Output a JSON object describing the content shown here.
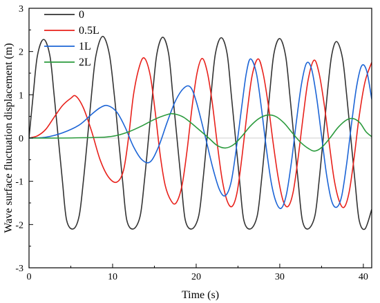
{
  "chart_data": {
    "type": "line",
    "title": "",
    "xlabel": "Time (s)",
    "ylabel": "Wave surface fluctuation displacement (m)",
    "xlim": [
      0,
      41
    ],
    "ylim": [
      -3,
      3
    ],
    "x_ticks": [
      0,
      10,
      20,
      30,
      40
    ],
    "y_ticks": [
      -3,
      -2,
      -1,
      0,
      1,
      2,
      3
    ],
    "grid": false,
    "legend": {
      "position": "top-left"
    },
    "series": [
      {
        "name": "0",
        "color": "#333333",
        "points": [
          [
            0,
            0
          ],
          [
            0.5,
            1.0
          ],
          [
            1.0,
            1.9
          ],
          [
            1.75,
            2.28
          ],
          [
            2.5,
            1.9
          ],
          [
            3.0,
            1.0
          ],
          [
            3.5,
            0.0
          ],
          [
            4.0,
            -1.0
          ],
          [
            4.5,
            -1.9
          ],
          [
            5.3,
            -2.1
          ],
          [
            6.0,
            -1.8
          ],
          [
            6.5,
            -1.0
          ],
          [
            7.0,
            0.0
          ],
          [
            7.5,
            1.05
          ],
          [
            8.0,
            1.9
          ],
          [
            8.8,
            2.35
          ],
          [
            9.6,
            1.95
          ],
          [
            10.2,
            1.0
          ],
          [
            10.7,
            0.0
          ],
          [
            11.2,
            -1.0
          ],
          [
            11.7,
            -1.9
          ],
          [
            12.5,
            -2.1
          ],
          [
            13.3,
            -1.8
          ],
          [
            13.8,
            -1.0
          ],
          [
            14.3,
            0.0
          ],
          [
            14.8,
            1.05
          ],
          [
            15.3,
            1.95
          ],
          [
            16.0,
            2.33
          ],
          [
            16.7,
            1.95
          ],
          [
            17.2,
            1.0
          ],
          [
            17.7,
            0.0
          ],
          [
            18.2,
            -1.0
          ],
          [
            18.7,
            -1.9
          ],
          [
            19.5,
            -2.1
          ],
          [
            20.3,
            -1.8
          ],
          [
            20.8,
            -1.0
          ],
          [
            21.3,
            0.0
          ],
          [
            21.8,
            1.05
          ],
          [
            22.3,
            1.95
          ],
          [
            23.0,
            2.32
          ],
          [
            23.7,
            1.95
          ],
          [
            24.2,
            1.0
          ],
          [
            24.7,
            0.0
          ],
          [
            25.2,
            -1.0
          ],
          [
            25.7,
            -1.9
          ],
          [
            26.5,
            -2.1
          ],
          [
            27.3,
            -1.8
          ],
          [
            27.8,
            -1.0
          ],
          [
            28.3,
            0.0
          ],
          [
            28.8,
            1.05
          ],
          [
            29.3,
            1.95
          ],
          [
            30.0,
            2.3
          ],
          [
            30.7,
            1.9
          ],
          [
            31.2,
            1.0
          ],
          [
            31.7,
            0.0
          ],
          [
            32.2,
            -1.0
          ],
          [
            32.7,
            -1.9
          ],
          [
            33.4,
            -2.1
          ],
          [
            34.2,
            -1.8
          ],
          [
            34.7,
            -1.0
          ],
          [
            35.2,
            0.0
          ],
          [
            35.7,
            1.05
          ],
          [
            36.2,
            1.9
          ],
          [
            36.8,
            2.23
          ],
          [
            37.5,
            1.85
          ],
          [
            38.0,
            1.0
          ],
          [
            38.5,
            0.0
          ],
          [
            39.0,
            -1.0
          ],
          [
            39.5,
            -1.9
          ],
          [
            40.2,
            -2.1
          ],
          [
            41.0,
            -1.65
          ]
        ]
      },
      {
        "name": "0.5L",
        "color": "#e8201a",
        "points": [
          [
            0,
            0
          ],
          [
            1.0,
            0.05
          ],
          [
            2.0,
            0.2
          ],
          [
            3.0,
            0.48
          ],
          [
            4.0,
            0.75
          ],
          [
            5.0,
            0.92
          ],
          [
            5.6,
            0.97
          ],
          [
            6.5,
            0.7
          ],
          [
            7.5,
            0.15
          ],
          [
            8.5,
            -0.5
          ],
          [
            9.5,
            -0.9
          ],
          [
            10.5,
            -1.02
          ],
          [
            11.3,
            -0.75
          ],
          [
            11.9,
            0.0
          ],
          [
            12.5,
            1.0
          ],
          [
            13.2,
            1.65
          ],
          [
            13.8,
            1.85
          ],
          [
            14.5,
            1.45
          ],
          [
            15.1,
            0.6
          ],
          [
            15.7,
            -0.4
          ],
          [
            16.3,
            -1.1
          ],
          [
            17.0,
            -1.45
          ],
          [
            17.6,
            -1.5
          ],
          [
            18.3,
            -1.1
          ],
          [
            18.9,
            -0.3
          ],
          [
            19.5,
            0.7
          ],
          [
            20.1,
            1.5
          ],
          [
            20.7,
            1.84
          ],
          [
            21.3,
            1.55
          ],
          [
            21.9,
            0.85
          ],
          [
            22.5,
            -0.1
          ],
          [
            23.1,
            -0.95
          ],
          [
            23.7,
            -1.45
          ],
          [
            24.3,
            -1.58
          ],
          [
            24.9,
            -1.25
          ],
          [
            25.5,
            -0.4
          ],
          [
            26.1,
            0.6
          ],
          [
            26.7,
            1.45
          ],
          [
            27.4,
            1.83
          ],
          [
            28.0,
            1.5
          ],
          [
            28.6,
            0.8
          ],
          [
            29.2,
            -0.1
          ],
          [
            29.8,
            -0.9
          ],
          [
            30.4,
            -1.45
          ],
          [
            31.0,
            -1.58
          ],
          [
            31.6,
            -1.25
          ],
          [
            32.2,
            -0.45
          ],
          [
            32.8,
            0.5
          ],
          [
            33.4,
            1.35
          ],
          [
            34.1,
            1.8
          ],
          [
            34.7,
            1.5
          ],
          [
            35.3,
            0.8
          ],
          [
            35.9,
            -0.1
          ],
          [
            36.5,
            -0.95
          ],
          [
            37.1,
            -1.45
          ],
          [
            37.7,
            -1.6
          ],
          [
            38.3,
            -1.25
          ],
          [
            38.9,
            -0.45
          ],
          [
            39.5,
            0.5
          ],
          [
            40.2,
            1.3
          ],
          [
            41.0,
            1.75
          ]
        ]
      },
      {
        "name": "1L",
        "color": "#1b64d6",
        "points": [
          [
            0,
            0
          ],
          [
            2.0,
            0.02
          ],
          [
            4.0,
            0.12
          ],
          [
            6.0,
            0.3
          ],
          [
            7.5,
            0.55
          ],
          [
            8.5,
            0.7
          ],
          [
            9.4,
            0.75
          ],
          [
            10.5,
            0.6
          ],
          [
            11.5,
            0.25
          ],
          [
            12.5,
            -0.2
          ],
          [
            13.5,
            -0.5
          ],
          [
            14.5,
            -0.55
          ],
          [
            15.5,
            -0.2
          ],
          [
            16.5,
            0.35
          ],
          [
            17.5,
            0.85
          ],
          [
            18.5,
            1.15
          ],
          [
            19.3,
            1.18
          ],
          [
            20.0,
            0.85
          ],
          [
            21.0,
            0.1
          ],
          [
            22.0,
            -0.7
          ],
          [
            22.8,
            -1.2
          ],
          [
            23.5,
            -1.33
          ],
          [
            24.2,
            -1.0
          ],
          [
            24.9,
            -0.1
          ],
          [
            25.5,
            0.8
          ],
          [
            26.0,
            1.5
          ],
          [
            26.5,
            1.83
          ],
          [
            27.2,
            1.5
          ],
          [
            27.8,
            0.7
          ],
          [
            28.4,
            -0.25
          ],
          [
            29.0,
            -1.05
          ],
          [
            29.6,
            -1.5
          ],
          [
            30.2,
            -1.62
          ],
          [
            30.8,
            -1.3
          ],
          [
            31.4,
            -0.55
          ],
          [
            32.0,
            0.4
          ],
          [
            32.6,
            1.25
          ],
          [
            33.2,
            1.73
          ],
          [
            33.8,
            1.6
          ],
          [
            34.4,
            0.95
          ],
          [
            35.0,
            0.05
          ],
          [
            35.6,
            -0.85
          ],
          [
            36.2,
            -1.45
          ],
          [
            36.8,
            -1.6
          ],
          [
            37.4,
            -1.35
          ],
          [
            38.0,
            -0.6
          ],
          [
            38.6,
            0.35
          ],
          [
            39.2,
            1.2
          ],
          [
            39.8,
            1.67
          ],
          [
            40.4,
            1.55
          ],
          [
            41.0,
            0.9
          ]
        ]
      },
      {
        "name": "2L",
        "color": "#2a9a3c",
        "points": [
          [
            0,
            0
          ],
          [
            4.0,
            0.0
          ],
          [
            7.0,
            0.01
          ],
          [
            9.0,
            0.02
          ],
          [
            10.5,
            0.06
          ],
          [
            12.0,
            0.15
          ],
          [
            13.5,
            0.28
          ],
          [
            15.0,
            0.43
          ],
          [
            16.5,
            0.54
          ],
          [
            17.3,
            0.56
          ],
          [
            18.5,
            0.48
          ],
          [
            20.0,
            0.25
          ],
          [
            21.5,
            0.0
          ],
          [
            22.5,
            -0.17
          ],
          [
            23.5,
            -0.23
          ],
          [
            24.5,
            -0.15
          ],
          [
            25.5,
            0.05
          ],
          [
            26.5,
            0.28
          ],
          [
            27.5,
            0.45
          ],
          [
            28.5,
            0.53
          ],
          [
            29.5,
            0.5
          ],
          [
            30.5,
            0.35
          ],
          [
            31.5,
            0.12
          ],
          [
            32.5,
            -0.1
          ],
          [
            33.5,
            -0.25
          ],
          [
            34.2,
            -0.3
          ],
          [
            35.0,
            -0.22
          ],
          [
            36.0,
            0.0
          ],
          [
            37.0,
            0.25
          ],
          [
            38.0,
            0.42
          ],
          [
            38.8,
            0.45
          ],
          [
            39.6,
            0.35
          ],
          [
            40.3,
            0.15
          ],
          [
            41.0,
            0.03
          ]
        ]
      }
    ]
  }
}
